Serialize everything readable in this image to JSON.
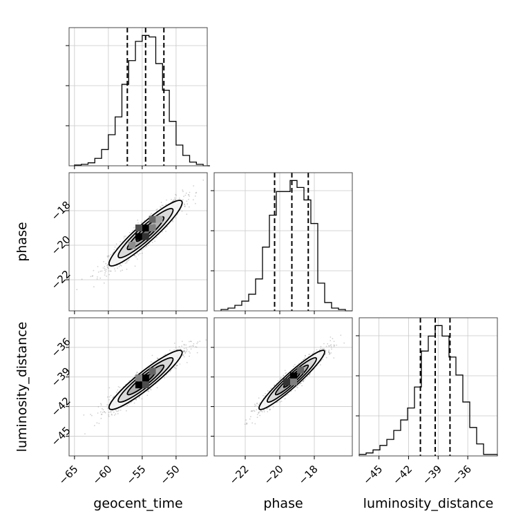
{
  "chart_data": {
    "type": "corner",
    "grid": true,
    "parameters": [
      {
        "name": "geocent_time",
        "axis_label": "geocent_time",
        "ticks": [
          -65,
          -60,
          -55,
          -50
        ],
        "range": [
          -65.8,
          -45.4
        ]
      },
      {
        "name": "phase",
        "axis_label": "phase",
        "ticks": [
          -22,
          -20,
          -18
        ],
        "range": [
          -23.8,
          -15.8
        ]
      },
      {
        "name": "luminosity_distance",
        "axis_label": "luminosity_distance",
        "ticks": [
          -45,
          -42,
          -39,
          -36
        ],
        "range": [
          -47.0,
          -33.0
        ]
      }
    ],
    "marginals": [
      {
        "parameter": "geocent_time",
        "quantiles": [
          -57.2,
          -54.5,
          -51.8
        ],
        "bin_edges": [
          -65,
          -64,
          -63,
          -62,
          -61,
          -60,
          -59,
          -58,
          -57,
          -56,
          -55,
          -54,
          -53,
          -52,
          -51,
          -50,
          -49,
          -48,
          -47,
          -46,
          -45
        ],
        "counts": [
          1,
          2,
          4,
          10,
          22,
          42,
          66,
          110,
          142,
          168,
          176,
          174,
          138,
          102,
          60,
          28,
          14,
          5,
          2,
          0
        ]
      },
      {
        "parameter": "phase",
        "quantiles": [
          -20.3,
          -19.3,
          -18.35
        ],
        "bin_edges": [
          -23.4,
          -23.0,
          -22.6,
          -22.2,
          -21.8,
          -21.4,
          -21.0,
          -20.6,
          -20.2,
          -19.8,
          -19.4,
          -19.0,
          -18.6,
          -18.2,
          -17.8,
          -17.4,
          -17.0,
          -16.6,
          -16.2,
          -15.8
        ],
        "counts": [
          2,
          4,
          8,
          14,
          24,
          46,
          92,
          138,
          172,
          172,
          188,
          178,
          160,
          126,
          40,
          12,
          4,
          2,
          0
        ]
      },
      {
        "parameter": "luminosity_distance",
        "quantiles": [
          -40.8,
          -39.3,
          -37.8
        ],
        "bin_edges": [
          -47.0,
          -46.3,
          -45.6,
          -44.9,
          -44.2,
          -43.5,
          -42.8,
          -42.1,
          -41.4,
          -40.7,
          -40.0,
          -39.3,
          -38.6,
          -37.9,
          -37.2,
          -36.5,
          -35.8,
          -35.1,
          -34.4,
          -33.7,
          -33.0
        ],
        "counts": [
          2,
          4,
          8,
          14,
          22,
          34,
          48,
          64,
          92,
          140,
          160,
          174,
          160,
          132,
          108,
          72,
          38,
          16,
          2,
          2
        ]
      }
    ],
    "joint": [
      {
        "x": "geocent_time",
        "y": "phase",
        "center": [
          -54.5,
          -19.3
        ],
        "sigma": [
          2.7,
          0.95
        ],
        "correlation": 0.93,
        "contour_levels": [
          0.5,
          1.0,
          1.5,
          2.0
        ],
        "bins": [
          {
            "x": -55.5,
            "y": -19.5,
            "density": 1.0
          },
          {
            "x": -54.5,
            "y": -19.0,
            "density": 1.0
          },
          {
            "x": -54.5,
            "y": -19.5,
            "density": 0.8
          },
          {
            "x": -55.5,
            "y": -19.0,
            "density": 0.7
          },
          {
            "x": -53.5,
            "y": -18.5,
            "density": 0.6
          },
          {
            "x": -52.5,
            "y": -18.5,
            "density": 0.35
          },
          {
            "x": -56.5,
            "y": -20.0,
            "density": 0.45
          },
          {
            "x": -53.5,
            "y": -19.0,
            "density": 0.5
          }
        ]
      },
      {
        "x": "geocent_time",
        "y": "luminosity_distance",
        "center": [
          -54.5,
          -39.3
        ],
        "sigma": [
          2.7,
          1.5
        ],
        "correlation": 0.93,
        "contour_levels": [
          0.5,
          1.0,
          1.5,
          2.0
        ],
        "bins": [
          {
            "x": -55.5,
            "y": -39.8,
            "density": 1.0
          },
          {
            "x": -54.5,
            "y": -39.1,
            "density": 1.0
          },
          {
            "x": -53.5,
            "y": -38.4,
            "density": 0.6
          },
          {
            "x": -54.5,
            "y": -39.8,
            "density": 0.7
          },
          {
            "x": -55.5,
            "y": -39.1,
            "density": 0.5
          }
        ]
      },
      {
        "x": "phase",
        "y": "luminosity_distance",
        "center": [
          -19.3,
          -39.3
        ],
        "sigma": [
          0.95,
          1.5
        ],
        "correlation": 0.95,
        "contour_levels": [
          0.5,
          1.0,
          1.5,
          2.0
        ],
        "bins": [
          {
            "x": -19.6,
            "y": -39.5,
            "density": 0.8
          },
          {
            "x": -19.2,
            "y": -38.9,
            "density": 1.0
          },
          {
            "x": -18.8,
            "y": -38.3,
            "density": 0.6
          },
          {
            "x": -19.2,
            "y": -39.5,
            "density": 0.5
          }
        ]
      }
    ]
  }
}
